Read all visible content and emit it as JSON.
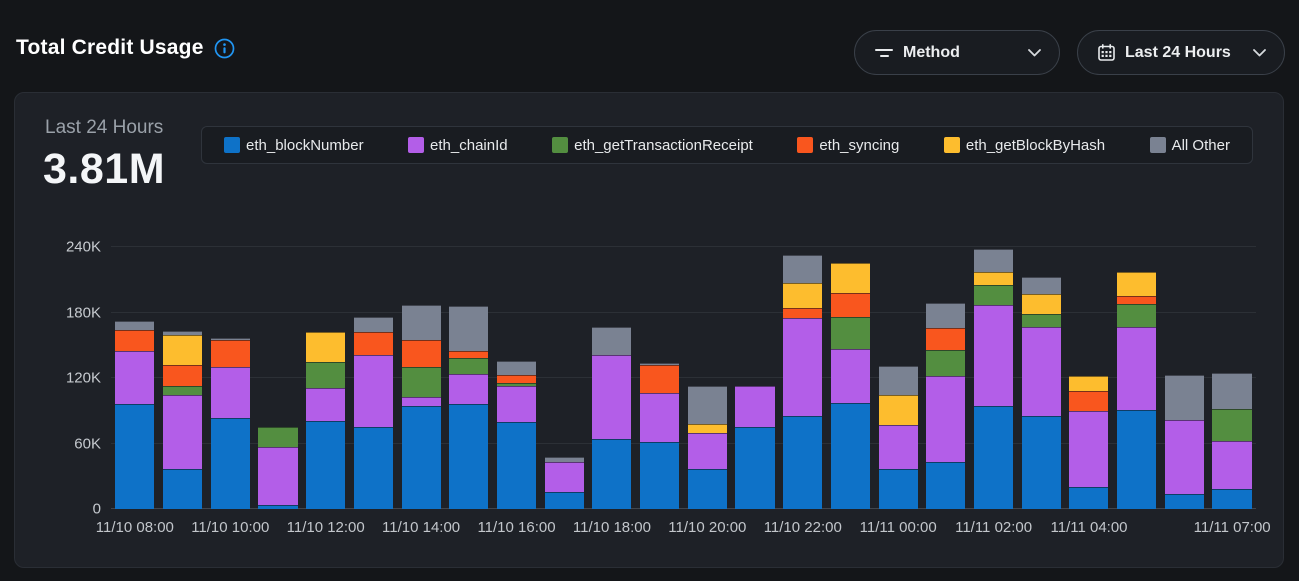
{
  "header": {
    "title": "Total Credit Usage",
    "info_tooltip": "i"
  },
  "filters": {
    "method": {
      "label": "Method"
    },
    "range": {
      "label": "Last 24 Hours"
    }
  },
  "panel": {
    "range_label": "Last 24 Hours",
    "total": "3.81M"
  },
  "colors": {
    "accent_info": "#2196f3",
    "page_bg": "#141619",
    "panel_bg": "#1e2127"
  },
  "chart_data": {
    "type": "bar",
    "variant": "stacked",
    "title": "Total Credit Usage - Last 24 Hours",
    "period_total_label": "3.81M",
    "values_unit": "thousands of credits",
    "ylim": [
      0,
      240
    ],
    "grid": true,
    "legend_position": "top",
    "y_ticks": [
      {
        "label": "0",
        "value": 0
      },
      {
        "label": "60K",
        "value": 60
      },
      {
        "label": "120K",
        "value": 120
      },
      {
        "label": "180K",
        "value": 180
      },
      {
        "label": "240K",
        "value": 240
      }
    ],
    "x": [
      "11/10 08:00",
      "11/10 09:00",
      "11/10 10:00",
      "11/10 11:00",
      "11/10 12:00",
      "11/10 13:00",
      "11/10 14:00",
      "11/10 15:00",
      "11/10 16:00",
      "11/10 17:00",
      "11/10 18:00",
      "11/10 19:00",
      "11/10 20:00",
      "11/10 21:00",
      "11/10 22:00",
      "11/10 23:00",
      "11/11 00:00",
      "11/11 01:00",
      "11/11 02:00",
      "11/11 03:00",
      "11/11 04:00",
      "11/11 05:00",
      "11/11 06:00",
      "11/11 07:00"
    ],
    "x_tick_labels": [
      "11/10 08:00",
      "11/10 10:00",
      "11/10 12:00",
      "11/10 14:00",
      "11/10 16:00",
      "11/10 18:00",
      "11/10 20:00",
      "11/10 22:00",
      "11/11 00:00",
      "11/11 02:00",
      "11/11 04:00",
      "11/11 07:00"
    ],
    "x_tick_bar_indices": [
      0,
      2,
      4,
      6,
      8,
      10,
      12,
      14,
      16,
      18,
      20,
      23
    ],
    "series": [
      {
        "name": "eth_blockNumber",
        "color": "#0e72c8",
        "values": [
          96,
          37,
          83,
          4,
          81,
          75,
          94,
          96,
          80,
          16,
          64,
          61,
          37,
          75,
          85,
          97,
          37,
          43,
          94,
          85,
          20,
          91,
          14,
          18
        ]
      },
      {
        "name": "eth_chainId",
        "color": "#b35ee8",
        "values": [
          49,
          67,
          47,
          53,
          30,
          66,
          9,
          28,
          33,
          27,
          77,
          45,
          33,
          38,
          90,
          50,
          40,
          79,
          93,
          82,
          70,
          76,
          68,
          44
        ]
      },
      {
        "name": "eth_getTransactionReceipt",
        "color": "#538e40",
        "values": [
          0,
          9,
          0,
          18,
          24,
          0,
          27,
          14,
          2,
          0,
          0,
          0,
          0,
          0,
          0,
          29,
          0,
          24,
          18,
          12,
          0,
          21,
          0,
          30
        ]
      },
      {
        "name": "eth_syncing",
        "color": "#f9561e",
        "values": [
          19,
          19,
          25,
          0,
          0,
          21,
          25,
          7,
          8,
          0,
          0,
          26,
          0,
          0,
          9,
          22,
          0,
          20,
          0,
          0,
          18,
          7,
          0,
          0
        ]
      },
      {
        "name": "eth_getBlockByHash",
        "color": "#fdbd2e",
        "values": [
          0,
          27,
          0,
          0,
          27,
          0,
          0,
          0,
          0,
          0,
          0,
          0,
          8,
          0,
          23,
          27,
          27,
          0,
          12,
          18,
          14,
          22,
          0,
          0
        ]
      },
      {
        "name": "All Other",
        "color": "#7a8292",
        "values": [
          8,
          4,
          2,
          0,
          0,
          14,
          32,
          41,
          13,
          5,
          26,
          2,
          35,
          0,
          26,
          0,
          27,
          23,
          21,
          16,
          0,
          0,
          41,
          33
        ]
      }
    ]
  }
}
